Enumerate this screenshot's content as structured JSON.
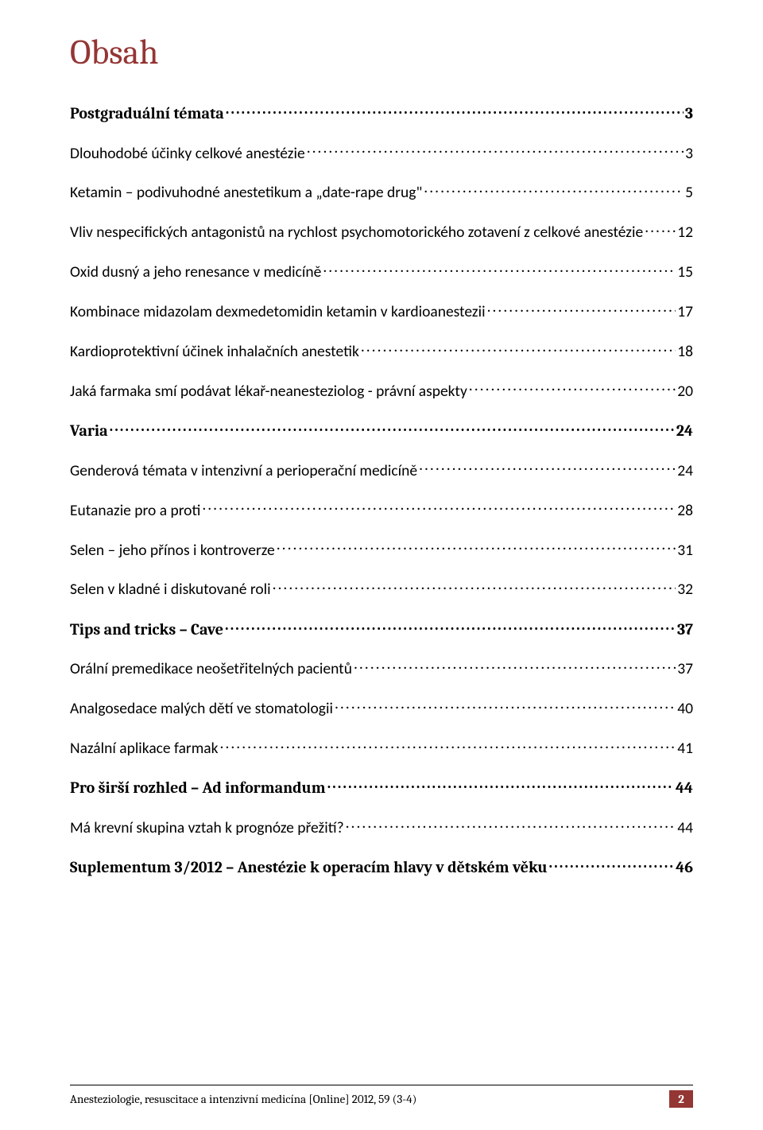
{
  "colors": {
    "accent": "#943634",
    "text": "#000000",
    "background": "#ffffff"
  },
  "title": "Obsah",
  "toc": [
    {
      "type": "section",
      "label": "Postgraduální témata",
      "page": "3"
    },
    {
      "type": "sub",
      "label": "Dlouhodobé účinky celkové anestézie",
      "page": "3"
    },
    {
      "type": "sub",
      "label": "Ketamin – podivuhodné anestetikum a „date-rape drug\"",
      "page": "5"
    },
    {
      "type": "sub",
      "label": "Vliv nespecifických antagonistů na rychlost psychomotorického zotavení z celkové anestézie",
      "page": "12"
    },
    {
      "type": "sub",
      "label": "Oxid dusný a jeho renesance v medicíně",
      "page": "15"
    },
    {
      "type": "sub",
      "label": "Kombinace midazolam dexmedetomidin ketamin v kardioanestezii",
      "page": "17"
    },
    {
      "type": "sub",
      "label": "Kardioprotektivní účinek inhalačních anestetik",
      "page": "18"
    },
    {
      "type": "sub",
      "label": "Jaká farmaka smí podávat lékař-neanesteziolog - právní aspekty",
      "page": "20"
    },
    {
      "type": "section",
      "label": "Varia",
      "page": "24"
    },
    {
      "type": "sub",
      "label": "Genderová témata v  intenzivní a perioperační medicíně",
      "page": "24"
    },
    {
      "type": "sub",
      "label": "Eutanazie pro a proti",
      "page": "28"
    },
    {
      "type": "sub",
      "label": "Selen – jeho přínos i kontroverze",
      "page": "31"
    },
    {
      "type": "sub",
      "label": "Selen v kladné i diskutované roli",
      "page": "32"
    },
    {
      "type": "section",
      "label": "Tips and tricks – Cave",
      "page": "37"
    },
    {
      "type": "sub",
      "label": "Orální premedikace neošetřitelných pacientů",
      "page": "37"
    },
    {
      "type": "sub",
      "label": "Analgosedace malých dětí ve stomatologii",
      "page": "40"
    },
    {
      "type": "sub",
      "label": "Nazální aplikace farmak",
      "page": "41"
    },
    {
      "type": "section",
      "label": "Pro širší rozhled – Ad informandum",
      "page": "44"
    },
    {
      "type": "sub",
      "label": "Má krevní skupina vztah k prognóze přežití?",
      "page": "44"
    },
    {
      "type": "section",
      "label": "Suplementum 3/2012 – Anestézie k operacím hlavy v dětském věku",
      "page": "46"
    }
  ],
  "footer": {
    "text": "Anesteziologie, resuscitace a intenzivní medicína [Online] 2012, 59 (3-4)",
    "page_number": "2"
  }
}
